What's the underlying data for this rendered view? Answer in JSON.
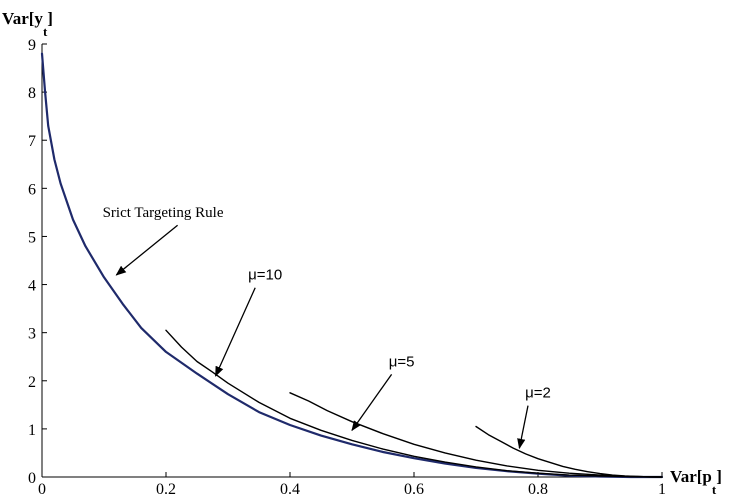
{
  "chart_data": {
    "type": "line",
    "xlim": [
      0,
      1
    ],
    "ylim": [
      0,
      9
    ],
    "x_ticks": [
      "0",
      "0.2",
      "0.4",
      "0.6",
      "0.8",
      "1"
    ],
    "y_ticks": [
      "0",
      "1",
      "2",
      "3",
      "4",
      "5",
      "6",
      "7",
      "8",
      "9"
    ],
    "xlabel": {
      "main": "Var[p",
      "sub": "t",
      "close": "]"
    },
    "ylabel": {
      "main": "Var[y",
      "sub": "t",
      "close": "]"
    },
    "grid": false,
    "series": [
      {
        "name": "Srict Targeting Rule",
        "color": "#1f2a6b",
        "x": [
          0.0,
          0.005,
          0.01,
          0.02,
          0.03,
          0.05,
          0.07,
          0.1,
          0.13,
          0.16,
          0.2,
          0.25,
          0.3,
          0.35,
          0.4,
          0.45,
          0.5,
          0.55,
          0.6,
          0.65,
          0.7,
          0.75,
          0.8,
          0.85,
          0.9,
          0.95,
          1.0
        ],
        "values": [
          8.8,
          8.0,
          7.3,
          6.6,
          6.1,
          5.35,
          4.8,
          4.15,
          3.6,
          3.1,
          2.6,
          2.15,
          1.72,
          1.35,
          1.08,
          0.86,
          0.68,
          0.52,
          0.39,
          0.28,
          0.19,
          0.12,
          0.07,
          0.03,
          0.01,
          0.0,
          0.0
        ]
      },
      {
        "name": "μ=10",
        "color": "#000000",
        "x": [
          0.2,
          0.225,
          0.25,
          0.275,
          0.3,
          0.35,
          0.4,
          0.45,
          0.5,
          0.55,
          0.6,
          0.65,
          0.7,
          0.75,
          0.8,
          0.85,
          0.9,
          0.95,
          1.0
        ],
        "values": [
          3.05,
          2.7,
          2.4,
          2.18,
          1.95,
          1.55,
          1.22,
          0.97,
          0.76,
          0.58,
          0.43,
          0.31,
          0.21,
          0.13,
          0.08,
          0.04,
          0.02,
          0.01,
          0.0
        ]
      },
      {
        "name": "μ=5",
        "color": "#000000",
        "x": [
          0.4,
          0.43,
          0.46,
          0.5,
          0.55,
          0.6,
          0.65,
          0.7,
          0.75,
          0.8,
          0.85,
          0.9,
          0.95,
          1.0
        ],
        "values": [
          1.75,
          1.58,
          1.38,
          1.15,
          0.9,
          0.68,
          0.5,
          0.35,
          0.23,
          0.14,
          0.08,
          0.04,
          0.01,
          0.0
        ]
      },
      {
        "name": "μ=2",
        "color": "#000000",
        "x": [
          0.7,
          0.72,
          0.74,
          0.76,
          0.78,
          0.8,
          0.82,
          0.84,
          0.86,
          0.88,
          0.9,
          0.92,
          0.94,
          0.96,
          0.98,
          1.0
        ],
        "values": [
          1.05,
          0.88,
          0.74,
          0.6,
          0.48,
          0.38,
          0.3,
          0.22,
          0.16,
          0.11,
          0.07,
          0.04,
          0.02,
          0.01,
          0.0,
          0.0
        ]
      }
    ],
    "annotations": [
      {
        "text": "Srict Targeting Rule",
        "x": 0.13,
        "y": 5.4,
        "arrow_to": [
          0.12,
          4.2
        ]
      },
      {
        "text": "μ=10",
        "x": 0.36,
        "y": 4.1,
        "arrow_to": [
          0.28,
          2.1
        ]
      },
      {
        "text": "μ=5",
        "x": 0.58,
        "y": 2.3,
        "arrow_to": [
          0.5,
          0.97
        ]
      },
      {
        "text": "μ=2",
        "x": 0.8,
        "y": 1.65,
        "arrow_to": [
          0.77,
          0.6
        ]
      }
    ]
  }
}
